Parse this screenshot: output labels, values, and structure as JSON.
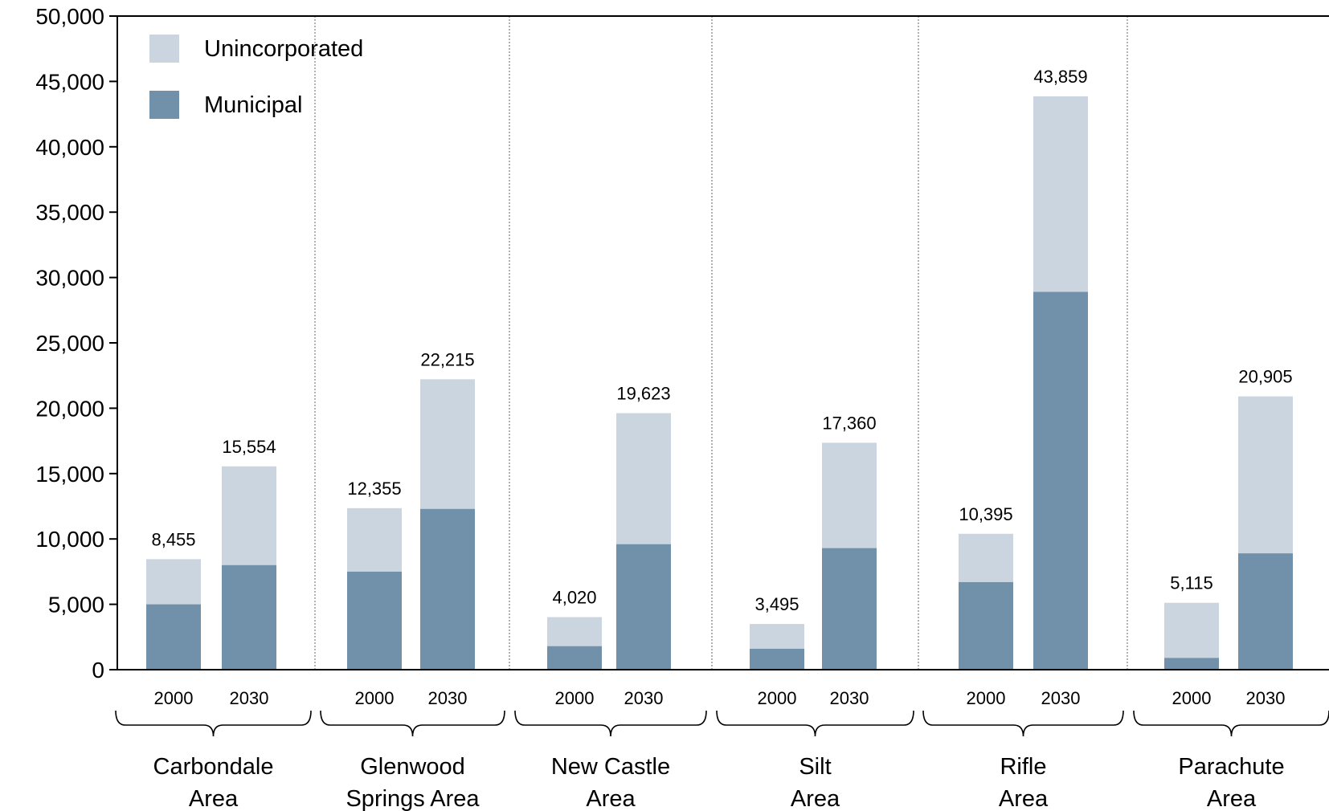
{
  "chart_data": {
    "type": "bar",
    "stacked": true,
    "ylim": [
      0,
      50000
    ],
    "yticks": [
      0,
      5000,
      10000,
      15000,
      20000,
      25000,
      30000,
      35000,
      40000,
      45000,
      50000
    ],
    "ytick_labels": [
      "0",
      "5,000",
      "10,000",
      "15,000",
      "20,000",
      "25,000",
      "30,000",
      "35,000",
      "40,000",
      "45,000",
      "50,000"
    ],
    "legend": {
      "placement": "top-left",
      "items": [
        {
          "name": "Unincorporated",
          "color": "#cbd5df"
        },
        {
          "name": "Municipal",
          "color": "#7190aa"
        }
      ]
    },
    "groups": [
      {
        "label_lines": [
          "Carbondale",
          "Area"
        ],
        "bars": [
          {
            "year": "2000",
            "municipal": 5000,
            "unincorporated": 3455,
            "total": 8455,
            "total_label": "8,455"
          },
          {
            "year": "2030",
            "municipal": 8000,
            "unincorporated": 7554,
            "total": 15554,
            "total_label": "15,554"
          }
        ]
      },
      {
        "label_lines": [
          "Glenwood",
          "Springs Area"
        ],
        "bars": [
          {
            "year": "2000",
            "municipal": 7500,
            "unincorporated": 4855,
            "total": 12355,
            "total_label": "12,355"
          },
          {
            "year": "2030",
            "municipal": 12300,
            "unincorporated": 9915,
            "total": 22215,
            "total_label": "22,215"
          }
        ]
      },
      {
        "label_lines": [
          "New Castle",
          "Area"
        ],
        "bars": [
          {
            "year": "2000",
            "municipal": 1800,
            "unincorporated": 2220,
            "total": 4020,
            "total_label": "4,020"
          },
          {
            "year": "2030",
            "municipal": 9600,
            "unincorporated": 10023,
            "total": 19623,
            "total_label": "19,623"
          }
        ]
      },
      {
        "label_lines": [
          "Silt",
          "Area"
        ],
        "bars": [
          {
            "year": "2000",
            "municipal": 1600,
            "unincorporated": 1895,
            "total": 3495,
            "total_label": "3,495"
          },
          {
            "year": "2030",
            "municipal": 9300,
            "unincorporated": 8060,
            "total": 17360,
            "total_label": "17,360"
          }
        ]
      },
      {
        "label_lines": [
          "Rifle",
          "Area"
        ],
        "bars": [
          {
            "year": "2000",
            "municipal": 6700,
            "unincorporated": 3695,
            "total": 10395,
            "total_label": "10,395"
          },
          {
            "year": "2030",
            "municipal": 28900,
            "unincorporated": 14959,
            "total": 43859,
            "total_label": "43,859"
          }
        ]
      },
      {
        "label_lines": [
          "Parachute",
          "Area"
        ],
        "bars": [
          {
            "year": "2000",
            "municipal": 900,
            "unincorporated": 4215,
            "total": 5115,
            "total_label": "5,115"
          },
          {
            "year": "2030",
            "municipal": 8900,
            "unincorporated": 12005,
            "total": 20905,
            "total_label": "20,905"
          }
        ]
      }
    ]
  }
}
